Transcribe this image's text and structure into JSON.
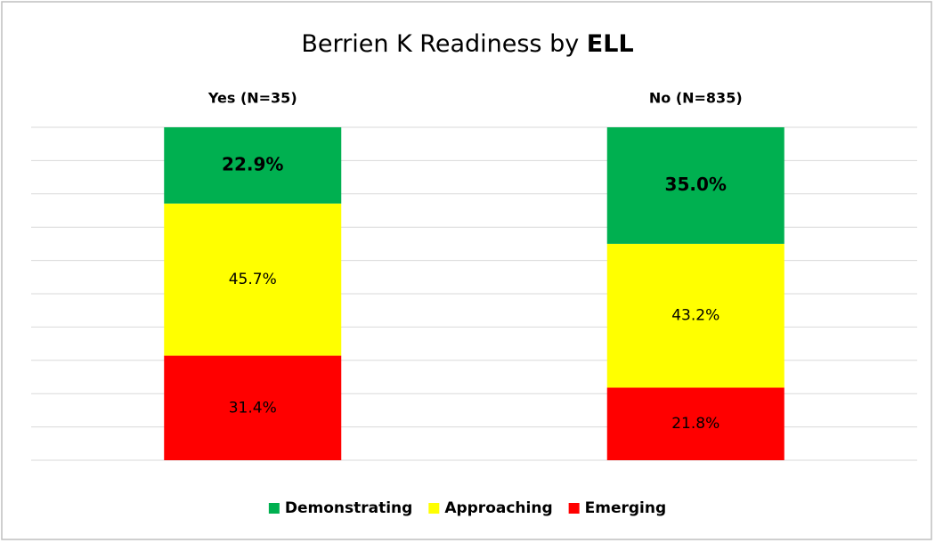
{
  "chart_data": {
    "type": "stacked_bar",
    "title": {
      "text": "Berrien K Readiness by",
      "emphasis": "ELL"
    },
    "categories": [
      "Yes (N=35)",
      "No (N=835)"
    ],
    "series": [
      {
        "name": "Demonstrating",
        "color": "#00b050",
        "values": [
          22.9,
          35.0
        ],
        "value_labels": [
          "22.9%",
          "35.0%"
        ]
      },
      {
        "name": "Approaching",
        "color": "#ffff00",
        "values": [
          45.7,
          43.2
        ],
        "value_labels": [
          "45.7%",
          "43.2%"
        ]
      },
      {
        "name": "Emerging",
        "color": "#ff0000",
        "values": [
          31.4,
          21.8
        ],
        "value_labels": [
          "31.4%",
          "21.8%"
        ]
      }
    ],
    "ylim": [
      0,
      100
    ],
    "yticks": [
      0,
      10,
      20,
      30,
      40,
      50,
      60,
      70,
      80,
      90,
      100
    ],
    "grid": true,
    "legend": "bottom"
  }
}
